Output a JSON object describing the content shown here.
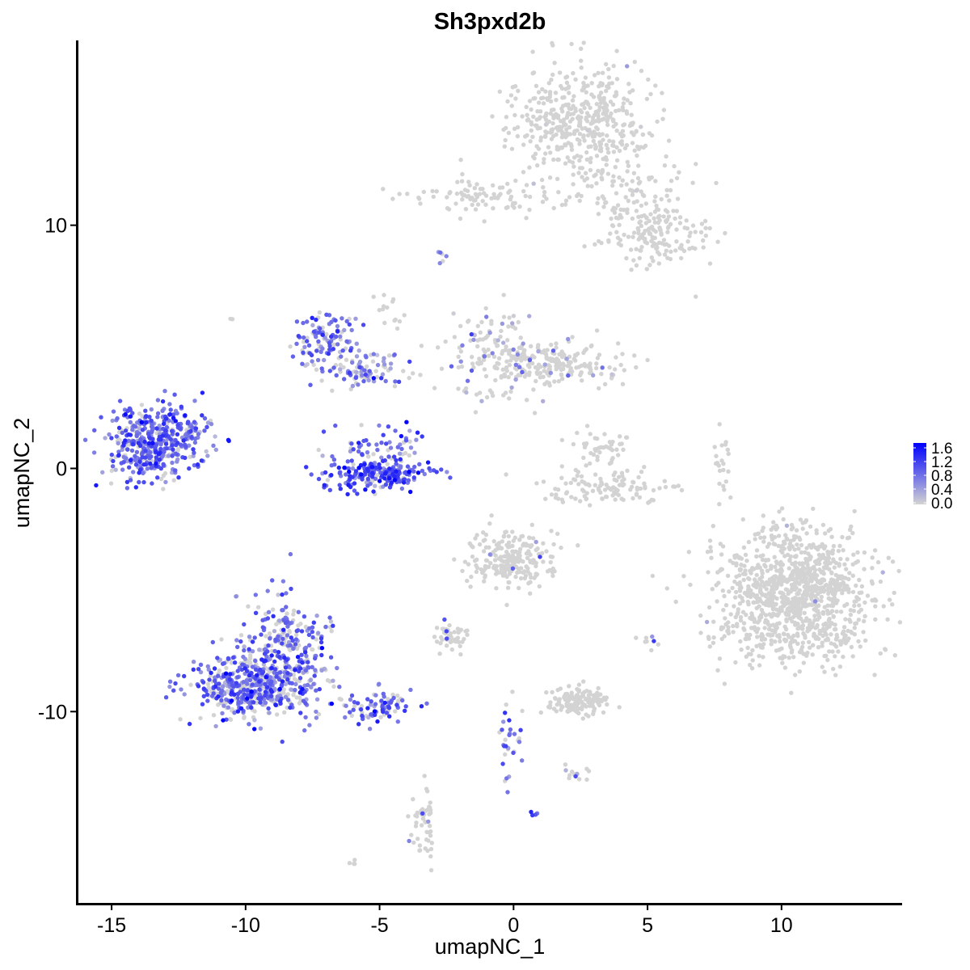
{
  "chart_data": {
    "type": "scatter",
    "title": "Sh3pxd2b",
    "xlabel": "umapNC_1",
    "ylabel": "umapNC_2",
    "xlim": [
      -16.3,
      14.5
    ],
    "ylim": [
      -17.9,
      17.6
    ],
    "x_ticks": [
      -15,
      -10,
      -5,
      0,
      5,
      10
    ],
    "y_ticks": [
      -10,
      0,
      10
    ],
    "x_tick_labels": [
      "-15",
      "-10",
      "-5",
      "0",
      "5",
      "10"
    ],
    "y_tick_labels": [
      "-10",
      "0",
      "10"
    ],
    "grid": false,
    "color_scale": {
      "low": "#d3d3d3",
      "high": "#0000ff",
      "min": 0.0,
      "max": 1.6,
      "legend_ticks": [
        1.6,
        1.2,
        0.8,
        0.4,
        0.0
      ],
      "legend_tick_labels": [
        "1.6",
        "1.2",
        "0.8",
        "0.4",
        "0.0"
      ],
      "legend_position": "right"
    },
    "clusters": [
      {
        "cx": 2.4,
        "cy": 14.2,
        "sx": 1.3,
        "sy": 1.2,
        "n": 480,
        "expr_mean": 0.02,
        "expr_frac": 0.01
      },
      {
        "cx": -1.5,
        "cy": 11.2,
        "sx": 1.5,
        "sy": 0.35,
        "n": 90,
        "expr_mean": 0.0,
        "expr_frac": 0.0
      },
      {
        "cx": 4.6,
        "cy": 11.0,
        "sx": 1.0,
        "sy": 0.9,
        "n": 110,
        "expr_mean": 0.02,
        "expr_frac": 0.02
      },
      {
        "cx": 5.4,
        "cy": 9.5,
        "sx": 0.9,
        "sy": 0.6,
        "n": 120,
        "expr_mean": 0.0,
        "expr_frac": 0.0
      },
      {
        "cx": -2.7,
        "cy": 8.8,
        "sx": 0.12,
        "sy": 0.15,
        "n": 6,
        "expr_mean": 0.6,
        "expr_frac": 0.5
      },
      {
        "cx": -4.5,
        "cy": 6.4,
        "sx": 0.25,
        "sy": 0.5,
        "n": 14,
        "expr_mean": 0.0,
        "expr_frac": 0.0
      },
      {
        "cx": -13.4,
        "cy": 1.1,
        "sx": 0.8,
        "sy": 0.8,
        "n": 430,
        "expr_mean": 0.8,
        "expr_frac": 0.85
      },
      {
        "cx": -12.0,
        "cy": 1.9,
        "sx": 0.4,
        "sy": 0.5,
        "n": 40,
        "expr_mean": 0.7,
        "expr_frac": 0.8
      },
      {
        "cx": -7.0,
        "cy": 5.2,
        "sx": 0.6,
        "sy": 0.6,
        "n": 110,
        "expr_mean": 0.75,
        "expr_frac": 0.7
      },
      {
        "cx": -5.5,
        "cy": 4.0,
        "sx": 0.7,
        "sy": 0.35,
        "n": 90,
        "expr_mean": 0.7,
        "expr_frac": 0.6
      },
      {
        "cx": -5.0,
        "cy": 1.0,
        "sx": 1.0,
        "sy": 0.45,
        "n": 70,
        "expr_mean": 0.8,
        "expr_frac": 0.75
      },
      {
        "cx": -5.2,
        "cy": -0.3,
        "sx": 1.0,
        "sy": 0.35,
        "n": 200,
        "expr_mean": 0.95,
        "expr_frac": 0.9
      },
      {
        "cx": -0.8,
        "cy": 4.6,
        "sx": 1.0,
        "sy": 1.0,
        "n": 140,
        "expr_mean": 0.5,
        "expr_frac": 0.2
      },
      {
        "cx": 1.8,
        "cy": 4.3,
        "sx": 1.3,
        "sy": 0.45,
        "n": 190,
        "expr_mean": 0.5,
        "expr_frac": 0.05
      },
      {
        "cx": 3.2,
        "cy": 0.7,
        "sx": 0.5,
        "sy": 0.45,
        "n": 50,
        "expr_mean": 0.5,
        "expr_frac": 0.05
      },
      {
        "cx": 3.5,
        "cy": -0.8,
        "sx": 1.2,
        "sy": 0.35,
        "n": 110,
        "expr_mean": 0.0,
        "expr_frac": 0.0
      },
      {
        "cx": 7.8,
        "cy": 0.0,
        "sx": 0.2,
        "sy": 0.8,
        "n": 22,
        "expr_mean": 0.0,
        "expr_frac": 0.0
      },
      {
        "cx": 10.5,
        "cy": -5.2,
        "sx": 1.5,
        "sy": 1.4,
        "n": 1100,
        "expr_mean": 0.6,
        "expr_frac": 0.004
      },
      {
        "cx": 0.0,
        "cy": -3.8,
        "sx": 0.8,
        "sy": 0.65,
        "n": 220,
        "expr_mean": 0.7,
        "expr_frac": 0.02
      },
      {
        "cx": -2.4,
        "cy": -6.9,
        "sx": 0.35,
        "sy": 0.3,
        "n": 50,
        "expr_mean": 0.9,
        "expr_frac": 0.04
      },
      {
        "cx": -8.5,
        "cy": -7.4,
        "sx": 0.9,
        "sy": 1.1,
        "n": 250,
        "expr_mean": 0.75,
        "expr_frac": 0.65
      },
      {
        "cx": -9.6,
        "cy": -9.0,
        "sx": 1.1,
        "sy": 0.65,
        "n": 520,
        "expr_mean": 0.8,
        "expr_frac": 0.7
      },
      {
        "cx": -5.2,
        "cy": -9.8,
        "sx": 0.8,
        "sy": 0.35,
        "n": 90,
        "expr_mean": 0.85,
        "expr_frac": 0.75
      },
      {
        "cx": 2.5,
        "cy": -9.6,
        "sx": 0.6,
        "sy": 0.3,
        "n": 140,
        "expr_mean": 0.0,
        "expr_frac": 0.0
      },
      {
        "cx": -0.2,
        "cy": -11.2,
        "sx": 0.3,
        "sy": 0.9,
        "n": 30,
        "expr_mean": 0.8,
        "expr_frac": 0.6
      },
      {
        "cx": 2.4,
        "cy": -12.5,
        "sx": 0.3,
        "sy": 0.2,
        "n": 14,
        "expr_mean": 0.8,
        "expr_frac": 0.15
      },
      {
        "cx": -3.4,
        "cy": -14.7,
        "sx": 0.25,
        "sy": 0.8,
        "n": 50,
        "expr_mean": 0.7,
        "expr_frac": 0.15
      },
      {
        "cx": 0.7,
        "cy": -14.2,
        "sx": 0.08,
        "sy": 0.08,
        "n": 4,
        "expr_mean": 0.9,
        "expr_frac": 1.0
      },
      {
        "cx": 5.0,
        "cy": -7.2,
        "sx": 0.3,
        "sy": 0.2,
        "n": 8,
        "expr_mean": 0.9,
        "expr_frac": 0.3
      },
      {
        "cx": -10.5,
        "cy": 6.1,
        "sx": 0.05,
        "sy": 0.05,
        "n": 2,
        "expr_mean": 0.0,
        "expr_frac": 0.0
      },
      {
        "cx": 6.8,
        "cy": 7.1,
        "sx": 0.05,
        "sy": 0.05,
        "n": 1,
        "expr_mean": 0.0,
        "expr_frac": 0.0
      },
      {
        "cx": -6.0,
        "cy": -16.2,
        "sx": 0.1,
        "sy": 0.08,
        "n": 4,
        "expr_mean": 0.0,
        "expr_frac": 0.0
      }
    ]
  }
}
